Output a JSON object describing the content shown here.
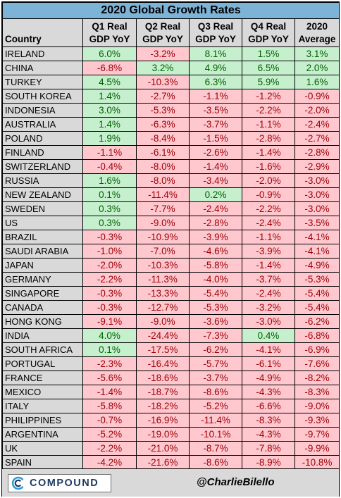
{
  "chart_data": {
    "type": "table",
    "title": "2020 Global Growth Rates",
    "columns": [
      {
        "key": "country",
        "lines": [
          "Country"
        ]
      },
      {
        "key": "q1",
        "lines": [
          "Q1 Real",
          "GDP YoY"
        ]
      },
      {
        "key": "q2",
        "lines": [
          "Q2 Real",
          "GDP YoY"
        ]
      },
      {
        "key": "q3",
        "lines": [
          "Q3 Real",
          "GDP YoY"
        ]
      },
      {
        "key": "q4",
        "lines": [
          "Q4 Real",
          "GDP YoY"
        ]
      },
      {
        "key": "avg",
        "lines": [
          "2020",
          "Average"
        ]
      }
    ],
    "rows": [
      {
        "country": "IRELAND",
        "values": [
          "6.0%",
          "-3.2%",
          "8.1%",
          "1.5%",
          "3.1%"
        ]
      },
      {
        "country": "CHINA",
        "values": [
          "-6.8%",
          "3.2%",
          "4.9%",
          "6.5%",
          "2.0%"
        ]
      },
      {
        "country": "TURKEY",
        "values": [
          "4.5%",
          "-10.3%",
          "6.3%",
          "5.9%",
          "1.6%"
        ]
      },
      {
        "country": "SOUTH KOREA",
        "values": [
          "1.4%",
          "-2.7%",
          "-1.1%",
          "-1.2%",
          "-0.9%"
        ]
      },
      {
        "country": "INDONESIA",
        "values": [
          "3.0%",
          "-5.3%",
          "-3.5%",
          "-2.2%",
          "-2.0%"
        ]
      },
      {
        "country": "AUSTRALIA",
        "values": [
          "1.4%",
          "-6.3%",
          "-3.7%",
          "-1.1%",
          "-2.4%"
        ]
      },
      {
        "country": "POLAND",
        "values": [
          "1.9%",
          "-8.4%",
          "-1.5%",
          "-2.8%",
          "-2.7%"
        ]
      },
      {
        "country": "FINLAND",
        "values": [
          "-1.1%",
          "-6.1%",
          "-2.6%",
          "-1.4%",
          "-2.8%"
        ]
      },
      {
        "country": "SWITZERLAND",
        "values": [
          "-0.4%",
          "-8.0%",
          "-1.4%",
          "-1.6%",
          "-2.9%"
        ]
      },
      {
        "country": "RUSSIA",
        "values": [
          "1.6%",
          "-8.0%",
          "-3.4%",
          "-2.0%",
          "-3.0%"
        ]
      },
      {
        "country": "NEW ZEALAND",
        "values": [
          "0.1%",
          "-11.4%",
          "0.2%",
          "-0.9%",
          "-3.0%"
        ]
      },
      {
        "country": "SWEDEN",
        "values": [
          "0.3%",
          "-7.7%",
          "-2.4%",
          "-2.2%",
          "-3.0%"
        ]
      },
      {
        "country": "US",
        "values": [
          "0.3%",
          "-9.0%",
          "-2.8%",
          "-2.4%",
          "-3.5%"
        ]
      },
      {
        "country": "BRAZIL",
        "values": [
          "-0.3%",
          "-10.9%",
          "-3.9%",
          "-1.1%",
          "-4.1%"
        ]
      },
      {
        "country": "SAUDI ARABIA",
        "values": [
          "-1.0%",
          "-7.0%",
          "-4.6%",
          "-3.9%",
          "-4.1%"
        ]
      },
      {
        "country": "JAPAN",
        "values": [
          "-2.0%",
          "-10.3%",
          "-5.8%",
          "-1.4%",
          "-4.9%"
        ]
      },
      {
        "country": "GERMANY",
        "values": [
          "-2.2%",
          "-11.3%",
          "-4.0%",
          "-3.7%",
          "-5.3%"
        ]
      },
      {
        "country": "SINGAPORE",
        "values": [
          "-0.3%",
          "-13.3%",
          "-5.4%",
          "-2.4%",
          "-5.4%"
        ]
      },
      {
        "country": "CANADA",
        "values": [
          "-0.3%",
          "-12.7%",
          "-5.3%",
          "-3.2%",
          "-5.4%"
        ]
      },
      {
        "country": "HONG KONG",
        "values": [
          "-9.1%",
          "-9.0%",
          "-3.6%",
          "-3.0%",
          "-6.2%"
        ]
      },
      {
        "country": "INDIA",
        "values": [
          "4.0%",
          "-24.4%",
          "-7.3%",
          "0.4%",
          "-6.8%"
        ]
      },
      {
        "country": "SOUTH AFRICA",
        "values": [
          "0.1%",
          "-17.5%",
          "-6.2%",
          "-4.1%",
          "-6.9%"
        ]
      },
      {
        "country": "PORTUGAL",
        "values": [
          "-2.3%",
          "-16.4%",
          "-5.7%",
          "-6.1%",
          "-7.6%"
        ]
      },
      {
        "country": "FRANCE",
        "values": [
          "-5.6%",
          "-18.6%",
          "-3.7%",
          "-4.9%",
          "-8.2%"
        ]
      },
      {
        "country": "MEXICO",
        "values": [
          "-1.4%",
          "-18.7%",
          "-8.6%",
          "-4.3%",
          "-8.3%"
        ]
      },
      {
        "country": "ITALY",
        "values": [
          "-5.8%",
          "-18.2%",
          "-5.2%",
          "-6.6%",
          "-9.0%"
        ]
      },
      {
        "country": "PHILIPPINES",
        "values": [
          "-0.7%",
          "-16.9%",
          "-11.4%",
          "-8.3%",
          "-9.3%"
        ]
      },
      {
        "country": "ARGENTINA",
        "values": [
          "-5.2%",
          "-19.0%",
          "-10.1%",
          "-4.3%",
          "-9.7%"
        ]
      },
      {
        "country": "UK",
        "values": [
          "-2.2%",
          "-21.0%",
          "-8.7%",
          "-7.8%",
          "-9.9%"
        ]
      },
      {
        "country": "SPAIN",
        "values": [
          "-4.2%",
          "-21.6%",
          "-8.6%",
          "-8.9%",
          "-10.8%"
        ]
      }
    ],
    "colors": {
      "title_bg": "#7db3d6",
      "header_bg": "#d9d9d9",
      "positive_bg": "#c6efce",
      "positive_text": "#006100",
      "negative_bg": "#ffc7ce",
      "negative_text": "#9c0006"
    }
  },
  "footer": {
    "logo_text": "COMPOUND",
    "logo_icon": "compound-logo-icon",
    "handle": "@CharlieBilello"
  }
}
